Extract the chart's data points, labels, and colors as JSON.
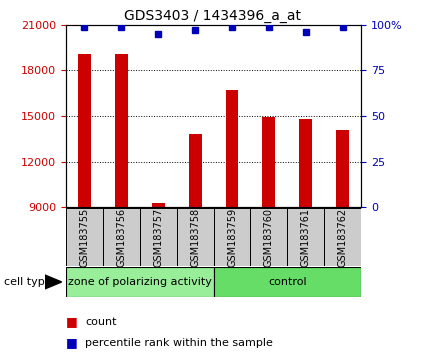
{
  "title": "GDS3403 / 1434396_a_at",
  "samples": [
    "GSM183755",
    "GSM183756",
    "GSM183757",
    "GSM183758",
    "GSM183759",
    "GSM183760",
    "GSM183761",
    "GSM183762"
  ],
  "counts": [
    19100,
    19100,
    9300,
    13800,
    16700,
    14900,
    14800,
    14100
  ],
  "percentile_ranks": [
    99,
    99,
    95,
    97,
    99,
    99,
    96,
    99
  ],
  "bar_color": "#CC0000",
  "dot_color": "#0000BB",
  "ylim_left": [
    9000,
    21000
  ],
  "ylim_right": [
    0,
    100
  ],
  "yticks_left": [
    9000,
    12000,
    15000,
    18000,
    21000
  ],
  "yticks_right": [
    0,
    25,
    50,
    75,
    100
  ],
  "group1_label": "zone of polarizing activity",
  "group2_label": "control",
  "group1_color": "#99EE99",
  "group2_color": "#66DD66",
  "cell_type_label": "cell type",
  "legend_count_label": "count",
  "legend_pct_label": "percentile rank within the sample",
  "title_fontsize": 10,
  "tick_fontsize": 8,
  "sample_fontsize": 7,
  "group_fontsize": 8,
  "legend_fontsize": 8,
  "bar_width": 0.35,
  "tick_label_color_left": "#CC0000",
  "tick_label_color_right": "#0000BB",
  "n_group1": 4,
  "n_group2": 4
}
